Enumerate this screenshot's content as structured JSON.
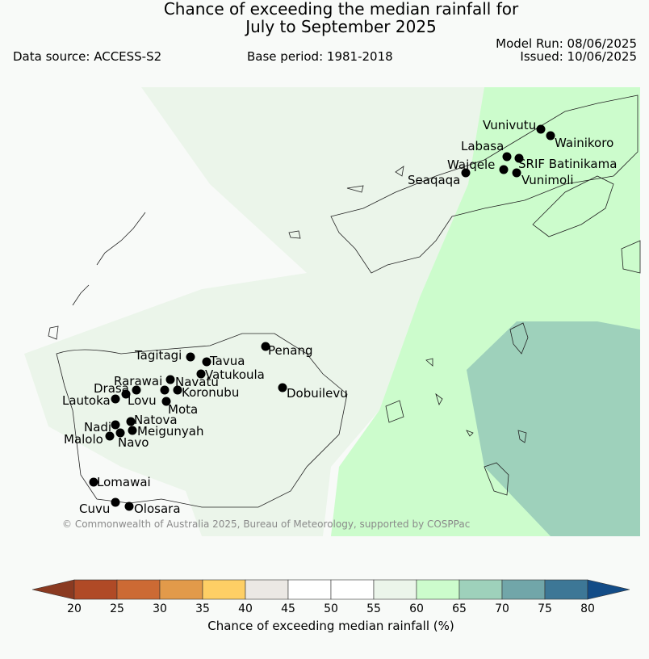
{
  "title_line1": "Chance of exceeding the median rainfall for",
  "title_line2": "July to September 2025",
  "data_source": "Data source: ACCESS-S2",
  "base_period": "Base period: 1981-2018",
  "model_run": "Model Run: 08/06/2025",
  "issued": "Issued: 10/06/2025",
  "copyright": "© Commonwealth of Australia 2025, Bureau of Meteorology, supported by COSPPac",
  "stations": [
    "Vunivutu",
    "Wainikoro",
    "Labasa",
    "Waiqele",
    "SRIF Batinikama",
    "Seaqaqa",
    "Vunimoli",
    "Tagitagi",
    "Tavua",
    "Penang",
    "Vatukoula",
    "Rarawai",
    "Navatu",
    "Koronubu",
    "Drasa",
    "Lautoka",
    "Lovu",
    "Mota",
    "Dobuilevu",
    "Natova",
    "Nadi",
    "Meigunyah",
    "Malolo",
    "Navo",
    "Lomawai",
    "Cuvu",
    "Olosara"
  ],
  "colorbar": {
    "title": "Chance of exceeding median rainfall (%)",
    "ticks": [
      "20",
      "25",
      "30",
      "35",
      "40",
      "45",
      "50",
      "55",
      "60",
      "65",
      "70",
      "75",
      "80"
    ],
    "colors": {
      "below_20": "#8a3a21",
      "20_25": "#b04a26",
      "25_30": "#cc6a34",
      "30_35": "#e29a4a",
      "35_40": "#fecf65",
      "40_45": "#ebe8e4",
      "45_50": "#ffffff",
      "50_55": "#ffffff",
      "55_60": "#ebf5ea",
      "60_65": "#ccfccc",
      "65_70": "#9ed1bb",
      "70_75": "#71a6a9",
      "75_80": "#3d7796",
      "above_80": "#134c87"
    }
  }
}
